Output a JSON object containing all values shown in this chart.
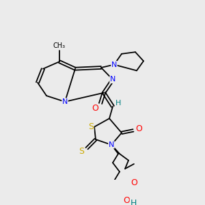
{
  "bg_color": "#ebebeb",
  "colors": {
    "N": "#0000ff",
    "O": "#ff0000",
    "S": "#ccaa00",
    "H": "#008080",
    "C": "#000000"
  },
  "lw": 1.3
}
